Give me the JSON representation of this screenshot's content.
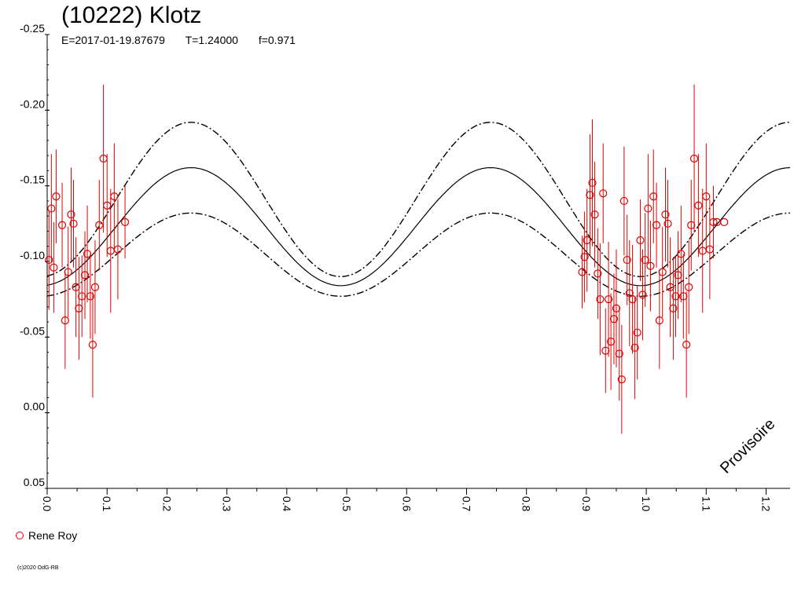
{
  "header": {
    "title": "(10222) Klotz",
    "epoch": "E=2017-01-19.87679",
    "period": "T=1.24000",
    "fraction": "f=0.971"
  },
  "legend": {
    "observer": "Rene Roy",
    "marker_color": "#e00000"
  },
  "copyright": "(c)2020 OdG-RB",
  "watermark": "Provisoire",
  "chart_data": {
    "type": "scatter",
    "title": "(10222) Klotz",
    "xlabel": "",
    "ylabel": "",
    "xlim": [
      0,
      1.24
    ],
    "ylim": [
      0.05,
      -0.25
    ],
    "y_inverted": true,
    "x_ticks": [
      "0.0",
      "0.1",
      "0.2",
      "0.3",
      "0.4",
      "0.5",
      "0.6",
      "0.7",
      "0.8",
      "0.9",
      "1.0",
      "1.1",
      "1.2"
    ],
    "y_ticks": [
      "-0.25",
      "-0.20",
      "-0.15",
      "-0.10",
      "-0.05",
      "0.00",
      "0.05"
    ],
    "grid": false,
    "legend_position": "bottom-left",
    "model": {
      "period_phase": 0.5,
      "peak_phase": 0.24,
      "fit_amplitude_max": -0.162,
      "fit_amplitude_min": -0.084,
      "upper_envelope_max": -0.192,
      "upper_envelope_min": -0.09,
      "lower_envelope_max": -0.132,
      "lower_envelope_min": -0.077
    },
    "series": [
      {
        "name": "Rene Roy",
        "color": "#e00000",
        "x": [
          0.003,
          0.007,
          0.011,
          0.015,
          0.025,
          0.03,
          0.035,
          0.04,
          0.044,
          0.048,
          0.053,
          0.058,
          0.063,
          0.067,
          0.072,
          0.076,
          0.08,
          0.087,
          0.094,
          0.1,
          0.106,
          0.112,
          0.118,
          0.13,
          0.893,
          0.897,
          0.901,
          0.906,
          0.91,
          0.914,
          0.919,
          0.923,
          0.928,
          0.932,
          0.937,
          0.941,
          0.946,
          0.95,
          0.955,
          0.959,
          0.963,
          0.968,
          0.972,
          0.977,
          0.981,
          0.985,
          0.99,
          0.994,
          0.998,
          1.003,
          1.007,
          1.012,
          1.017,
          1.022,
          1.027,
          1.032,
          1.036,
          1.04,
          1.045,
          1.049,
          1.053,
          1.058,
          1.062,
          1.067,
          1.071,
          1.075,
          1.08,
          1.087,
          1.094,
          1.1,
          1.106,
          1.112,
          1.118,
          1.13
        ],
        "y": [
          -0.101,
          -0.135,
          -0.096,
          -0.143,
          -0.124,
          -0.061,
          -0.093,
          -0.131,
          -0.125,
          -0.083,
          -0.069,
          -0.077,
          -0.091,
          -0.105,
          -0.077,
          -0.045,
          -0.083,
          -0.124,
          -0.168,
          -0.137,
          -0.107,
          -0.143,
          -0.108,
          -0.126,
          -0.093,
          -0.103,
          -0.114,
          -0.144,
          -0.152,
          -0.131,
          -0.092,
          -0.075,
          -0.145,
          -0.041,
          -0.075,
          -0.047,
          -0.062,
          -0.069,
          -0.039,
          -0.022,
          -0.14,
          -0.101,
          -0.079,
          -0.075,
          -0.043,
          -0.053,
          -0.114,
          -0.078,
          -0.101,
          -0.135,
          -0.097,
          -0.143,
          -0.124,
          -0.061,
          -0.093,
          -0.131,
          -0.125,
          -0.083,
          -0.069,
          -0.077,
          -0.091,
          -0.105,
          -0.077,
          -0.045,
          -0.083,
          -0.124,
          -0.168,
          -0.137,
          -0.107,
          -0.143,
          -0.108,
          -0.126,
          -0.126,
          -0.126
        ],
        "err": [
          0.033,
          0.036,
          0.03,
          0.031,
          0.028,
          0.032,
          0.03,
          0.031,
          0.029,
          0.033,
          0.034,
          0.027,
          0.029,
          0.032,
          0.028,
          0.035,
          0.031,
          0.03,
          0.049,
          0.034,
          0.041,
          0.035,
          0.033,
          0.024,
          0.024,
          0.03,
          0.034,
          0.04,
          0.042,
          0.035,
          0.03,
          0.037,
          0.033,
          0.028,
          0.038,
          0.032,
          0.03,
          0.039,
          0.031,
          0.036,
          0.036,
          0.03,
          0.035,
          0.036,
          0.034,
          0.031,
          0.027,
          0.03,
          0.031,
          0.036,
          0.03,
          0.031,
          0.028,
          0.032,
          0.03,
          0.031,
          0.029,
          0.033,
          0.034,
          0.027,
          0.029,
          0.032,
          0.028,
          0.035,
          0.031,
          0.03,
          0.049,
          0.034,
          0.041,
          0.035,
          0.033,
          0.024,
          0.0,
          0.0
        ]
      }
    ]
  }
}
